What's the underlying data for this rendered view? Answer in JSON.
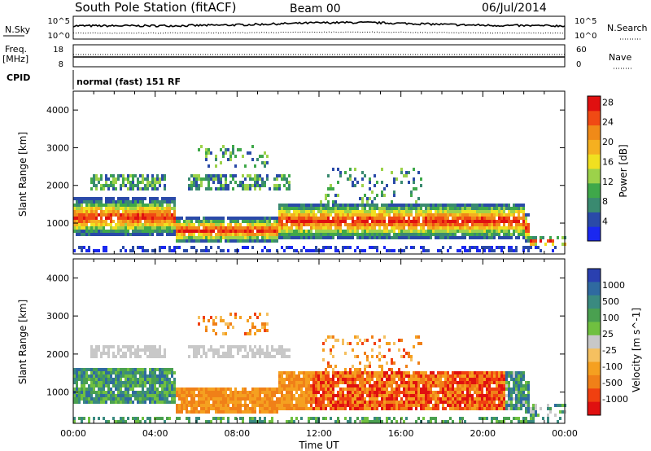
{
  "header": {
    "station_title": "South Pole Station (fitACF)",
    "beam": "Beam 00",
    "date": "06/Jul/2014"
  },
  "top_panels": {
    "nsky_label": "N.Sky",
    "nsearch_label": "N.Search",
    "nsky_ticks": [
      "10^5",
      "10^0"
    ],
    "nsearch_ticks": [
      "10^5",
      "10^0"
    ],
    "freq_label_1": "Freq.",
    "freq_label_2": "[MHz]",
    "freq_ticks": [
      "18",
      "8"
    ],
    "nave_label": "Nave",
    "nave_ticks": [
      "60",
      "0"
    ],
    "cpid_label": "CPID",
    "cpid_value": "normal (fast) 151 RF"
  },
  "chart_data": [
    {
      "type": "heatmap",
      "panel": "power",
      "ylabel": "Slant Range [km]",
      "ylim": [
        180,
        4500
      ],
      "yticks": [
        "1000",
        "2000",
        "3000",
        "4000"
      ],
      "x_ticks": [
        "00:00",
        "04:00",
        "08:00",
        "12:00",
        "16:00",
        "20:00",
        "00:00"
      ],
      "colorbar_label": "Power [dB]",
      "colorbar_ticks": [
        "4",
        "8",
        "12",
        "16",
        "20",
        "24",
        "28"
      ],
      "colorbar_colors": [
        "#1a28f0",
        "#2a4aa8",
        "#3a8a70",
        "#3fa84a",
        "#9cd24a",
        "#f0e020",
        "#f5b020",
        "#f08a18",
        "#f04a14",
        "#e01010"
      ]
    },
    {
      "type": "heatmap",
      "panel": "velocity",
      "ylabel": "Slant Range [km]",
      "ylim": [
        180,
        4500
      ],
      "yticks": [
        "1000",
        "2000",
        "3000",
        "4000"
      ],
      "x_ticks": [
        "00:00",
        "04:00",
        "08:00",
        "12:00",
        "16:00",
        "20:00",
        "00:00"
      ],
      "xlabel": "Time UT",
      "colorbar_label": "Velocity [m s^-1]",
      "colorbar_ticks": [
        "1000",
        "500",
        "100",
        "25",
        "-25",
        "-100",
        "-500",
        "-1000"
      ],
      "colorbar_colors": [
        "#2a40b0",
        "#2f6aa0",
        "#3a8a80",
        "#4aa050",
        "#70c040",
        "#c8c8c8",
        "#f5c060",
        "#f5a020",
        "#f08018",
        "#f04010",
        "#e01010"
      ]
    }
  ]
}
